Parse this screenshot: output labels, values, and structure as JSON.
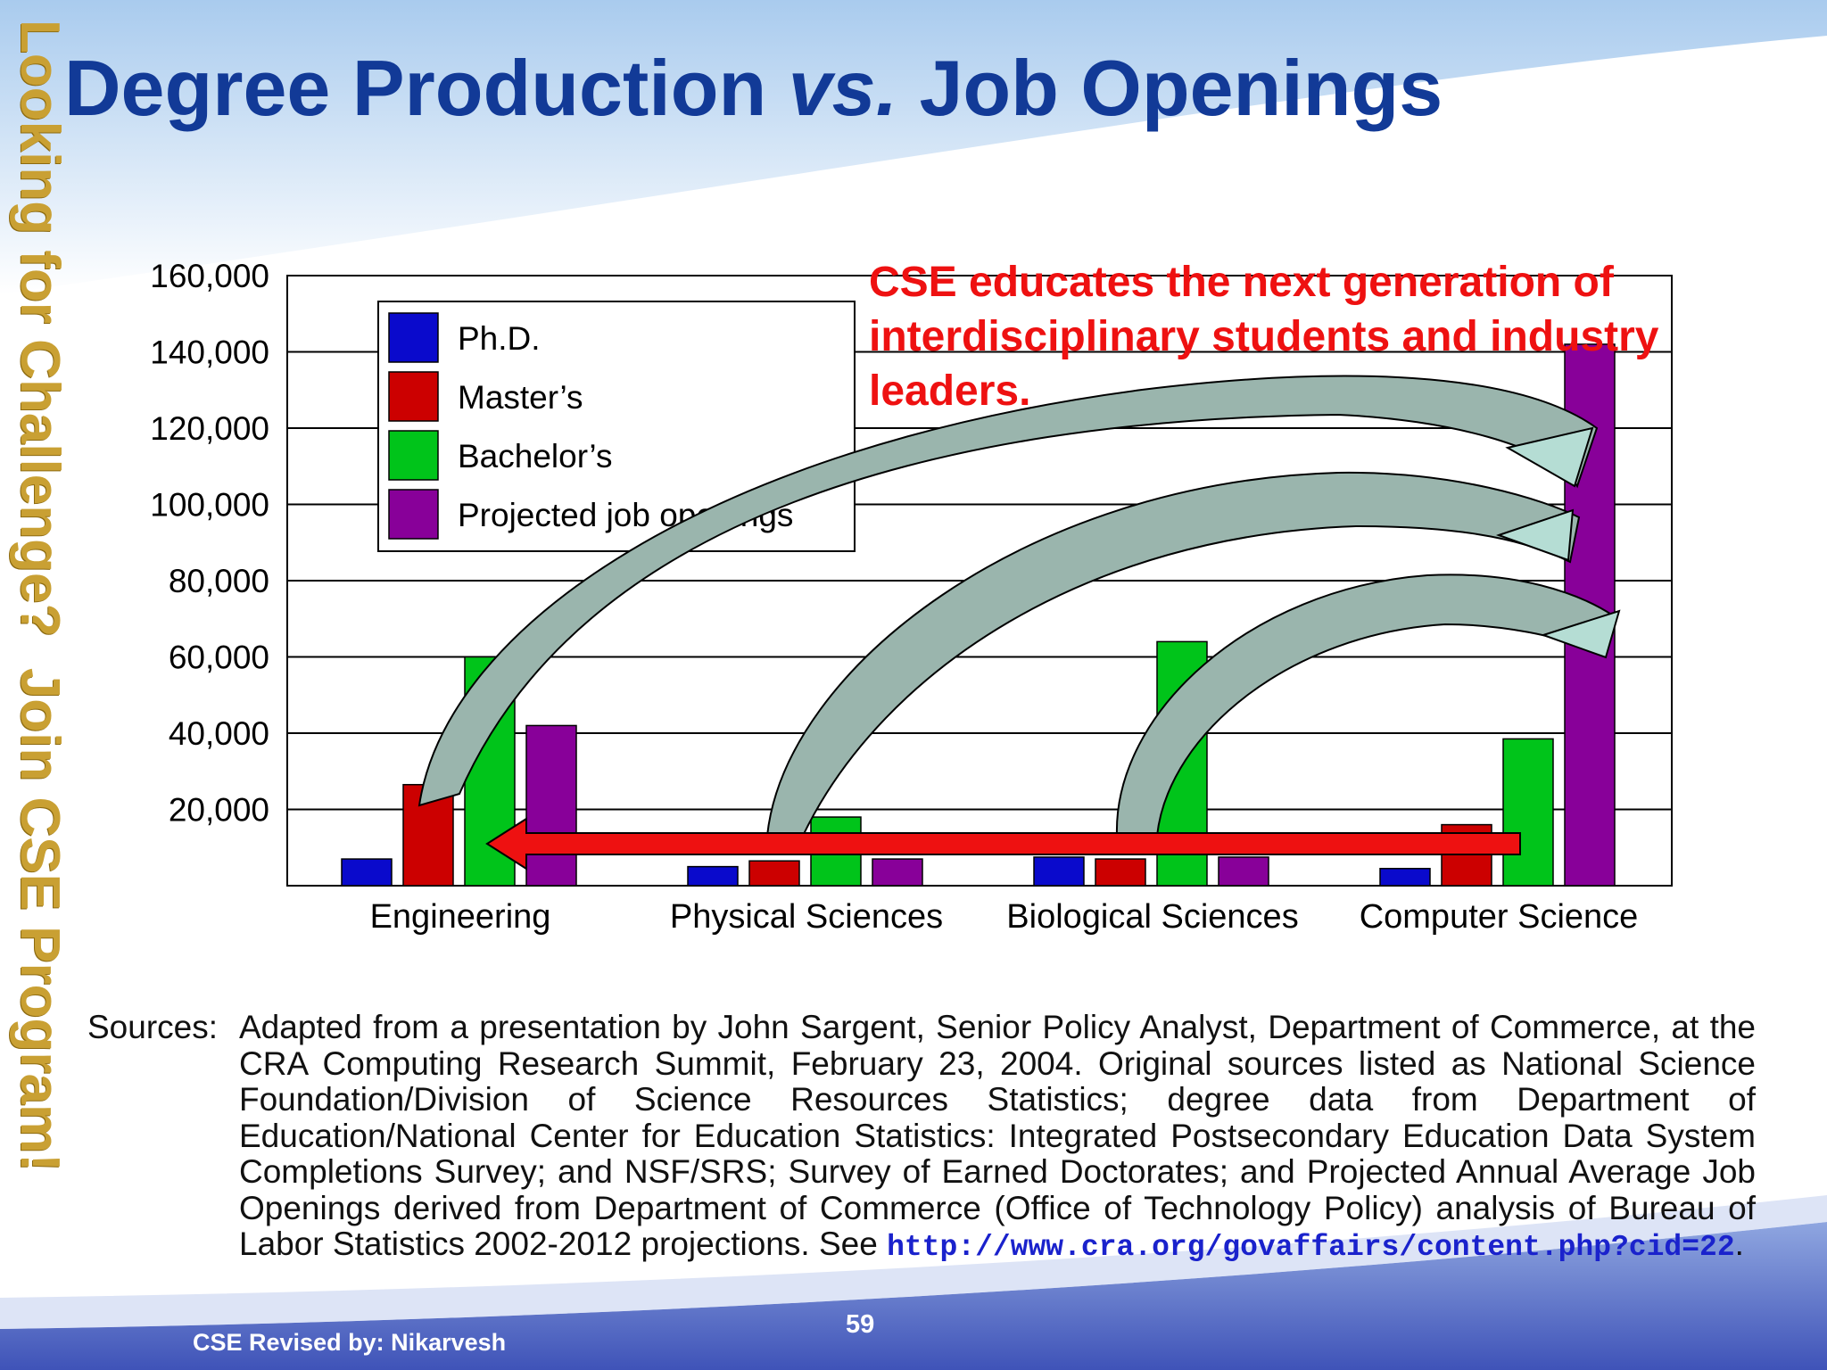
{
  "slide": {
    "title_main": "Degree Production",
    "title_vs": "vs.",
    "title_end": "Job Openings",
    "side_banner": "Looking for Challenge?  Join CSE Program!",
    "callout": "CSE educates the next generation of interdisciplinary students and industry leaders.",
    "sources_label": "Sources:",
    "sources_text": "Adapted from a presentation by John Sargent, Senior Policy Analyst, Department of Commerce, at the CRA Computing Research Summit, February 23, 2004.  Original sources listed as National Science Foundation/Division of Science Resources Statistics; degree data from Department of Education/National Center for Education Statistics:  Integrated Postsecondary Education Data System Completions Survey; and NSF/SRS; Survey of Earned Doctorates; and Projected Annual Average Job Openings derived from Department of Commerce (Office of Technology Policy) analysis of Bureau of Labor Statistics 2002-2012 projections.  See",
    "sources_link": "http://www.cra.org/govaffairs/content.php?cid=22",
    "sources_end": ".",
    "credit": "CSE Revised by: Nikarvesh",
    "page_number": "59"
  },
  "chart_data": {
    "type": "bar",
    "title": "",
    "xlabel": "",
    "ylabel": "",
    "ylim": [
      0,
      160000
    ],
    "y_ticks": [
      "20,000",
      "40,000",
      "60,000",
      "80,000",
      "100,000",
      "120,000",
      "140,000",
      "160,000"
    ],
    "grid": true,
    "legend_position": "top-left",
    "categories": [
      "Engineering",
      "Physical Sciences",
      "Biological Sciences",
      "Computer Science"
    ],
    "series": [
      {
        "name": "Ph.D.",
        "color": "#0a0acc",
        "values": [
          7000,
          5000,
          7500,
          4500
        ]
      },
      {
        "name": "Master’s",
        "color": "#cc0000",
        "values": [
          26500,
          6500,
          7000,
          16000
        ]
      },
      {
        "name": "Bachelor’s",
        "color": "#00c41a",
        "values": [
          60000,
          18000,
          64000,
          38500
        ]
      },
      {
        "name": "Projected  job openings",
        "color": "#880099",
        "values": [
          42000,
          7000,
          7500,
          142000
        ]
      }
    ]
  }
}
